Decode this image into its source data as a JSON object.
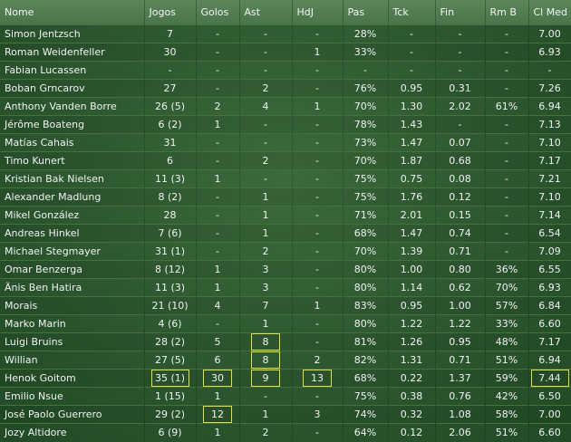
{
  "columns": [
    "Nome",
    "Jogos",
    "Golos",
    "Ast",
    "HdJ",
    "Pas",
    "Tck",
    "Fin",
    "Rm B",
    "Cl Med"
  ],
  "rows": [
    [
      "Simon Jentzsch",
      "7",
      "-",
      "-",
      "-",
      "28%",
      "-",
      "-",
      "-",
      "7.00"
    ],
    [
      "Roman Weidenfeller",
      "30",
      "-",
      "-",
      "1",
      "33%",
      "-",
      "-",
      "-",
      "6.93"
    ],
    [
      "Fabian Lucassen",
      "-",
      "-",
      "-",
      "-",
      "-",
      "-",
      "-",
      "-",
      "-"
    ],
    [
      "Boban Grncarov",
      "27",
      "-",
      "2",
      "-",
      "76%",
      "0.95",
      "0.31",
      "-",
      "7.26"
    ],
    [
      "Anthony Vanden Borre",
      "26 (5)",
      "2",
      "4",
      "1",
      "70%",
      "1.30",
      "2.02",
      "61%",
      "6.94"
    ],
    [
      "Jérôme Boateng",
      "6 (2)",
      "1",
      "-",
      "-",
      "78%",
      "1.43",
      "-",
      "-",
      "7.13"
    ],
    [
      "Matías Cahais",
      "31",
      "-",
      "-",
      "-",
      "73%",
      "1.47",
      "0.07",
      "-",
      "7.10"
    ],
    [
      "Timo Kunert",
      "6",
      "-",
      "2",
      "-",
      "70%",
      "1.87",
      "0.68",
      "-",
      "7.17"
    ],
    [
      "Kristian Bak Nielsen",
      "11 (3)",
      "1",
      "-",
      "-",
      "75%",
      "0.75",
      "0.08",
      "-",
      "7.21"
    ],
    [
      "Alexander Madlung",
      "8 (2)",
      "-",
      "1",
      "-",
      "75%",
      "1.76",
      "0.12",
      "-",
      "7.10"
    ],
    [
      "Mikel González",
      "28",
      "-",
      "1",
      "-",
      "71%",
      "2.01",
      "0.15",
      "-",
      "7.14"
    ],
    [
      "Andreas Hinkel",
      "7 (6)",
      "-",
      "1",
      "-",
      "68%",
      "1.47",
      "0.74",
      "-",
      "6.54"
    ],
    [
      "Michael Stegmayer",
      "31 (1)",
      "-",
      "2",
      "-",
      "70%",
      "1.39",
      "0.71",
      "-",
      "7.09"
    ],
    [
      "Omar Benzerga",
      "8 (12)",
      "1",
      "3",
      "-",
      "80%",
      "1.00",
      "0.80",
      "36%",
      "6.55"
    ],
    [
      "Änis Ben Hatira",
      "11 (3)",
      "1",
      "3",
      "-",
      "80%",
      "1.14",
      "0.62",
      "70%",
      "6.93"
    ],
    [
      "Morais",
      "21 (10)",
      "4",
      "7",
      "1",
      "83%",
      "0.95",
      "1.00",
      "57%",
      "6.84"
    ],
    [
      "Marko Marin",
      "4 (6)",
      "-",
      "1",
      "-",
      "80%",
      "1.22",
      "1.22",
      "33%",
      "6.60"
    ],
    [
      "Luigi Bruins",
      "28 (2)",
      "5",
      "8",
      "-",
      "81%",
      "1.26",
      "0.95",
      "48%",
      "7.17"
    ],
    [
      "Willian",
      "27 (5)",
      "6",
      "8",
      "2",
      "82%",
      "1.31",
      "0.71",
      "51%",
      "6.94"
    ],
    [
      "Henok Goitom",
      "35 (1)",
      "30",
      "9",
      "13",
      "68%",
      "0.22",
      "1.37",
      "59%",
      "7.44"
    ],
    [
      "Emilio Nsue",
      "1 (15)",
      "1",
      "-",
      "-",
      "75%",
      "0.38",
      "0.76",
      "42%",
      "6.50"
    ],
    [
      "José Paolo Guerrero",
      "29 (2)",
      "12",
      "1",
      "3",
      "74%",
      "0.32",
      "1.08",
      "58%",
      "7.00"
    ],
    [
      "Jozy Altidore",
      "6 (9)",
      "1",
      "2",
      "-",
      "64%",
      "0.12",
      "2.06",
      "51%",
      "6.60"
    ]
  ],
  "highlights": [
    [
      17,
      3
    ],
    [
      18,
      3
    ],
    [
      19,
      3
    ],
    [
      19,
      1
    ],
    [
      19,
      2
    ],
    [
      19,
      4
    ],
    [
      19,
      9
    ],
    [
      21,
      2
    ]
  ],
  "colors": {
    "highlight_border": "#e4e23a",
    "background": "#2c572f",
    "header": "#4f7a4e"
  }
}
